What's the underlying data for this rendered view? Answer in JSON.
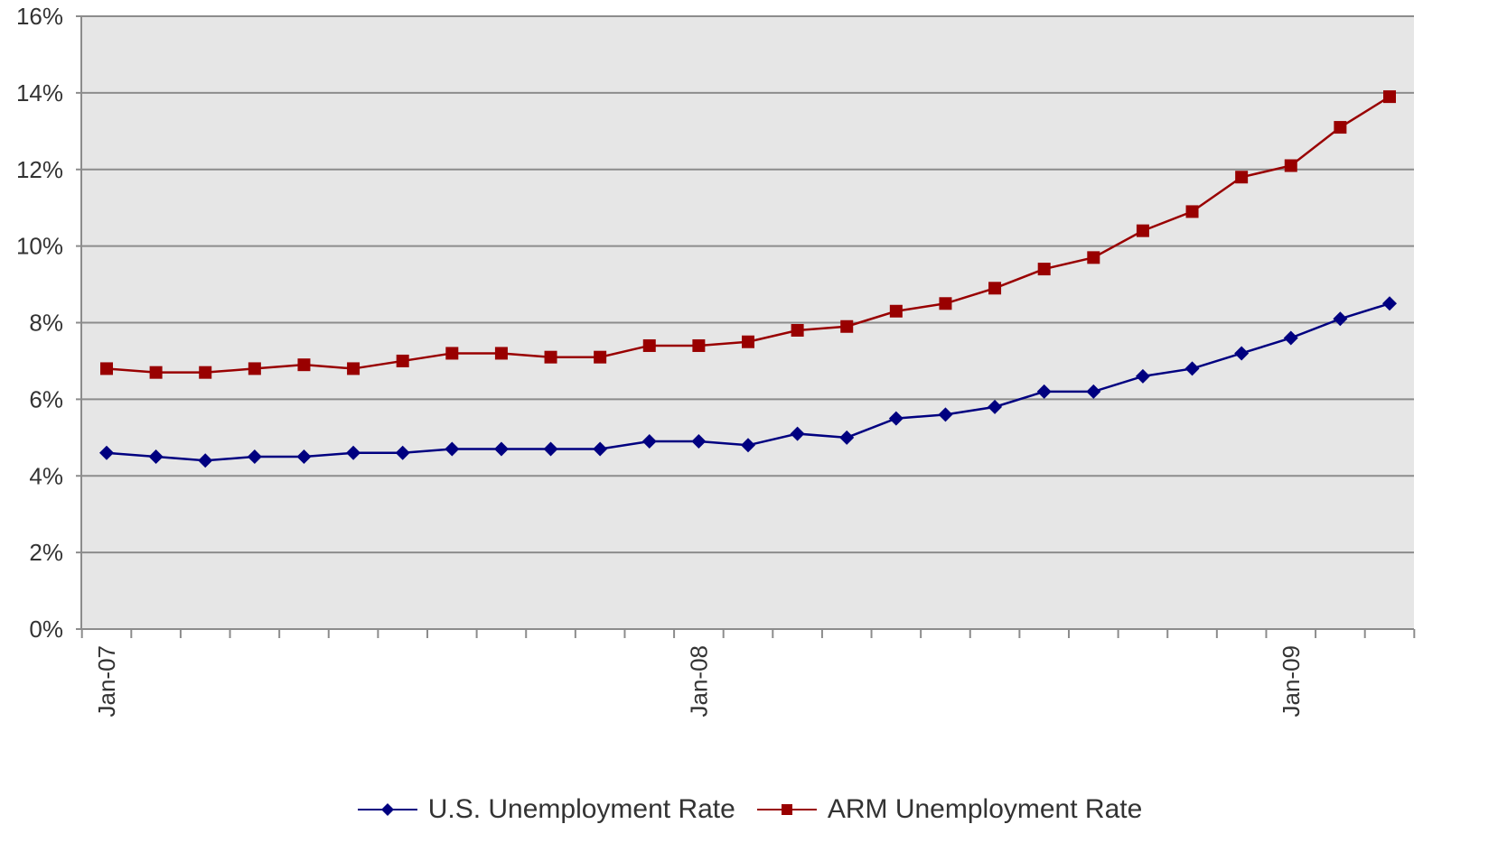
{
  "chart_data": {
    "type": "line",
    "title": "",
    "xlabel": "",
    "ylabel": "",
    "ylim": [
      0,
      16
    ],
    "y_ticks": [
      0,
      2,
      4,
      6,
      8,
      10,
      12,
      14,
      16
    ],
    "y_tick_labels": [
      "0%",
      "2%",
      "4%",
      "6%",
      "8%",
      "10%",
      "12%",
      "14%",
      "16%"
    ],
    "x": [
      "2007-01",
      "2007-02",
      "2007-03",
      "2007-04",
      "2007-05",
      "2007-06",
      "2007-07",
      "2007-08",
      "2007-09",
      "2007-10",
      "2007-11",
      "2007-12",
      "2008-01",
      "2008-02",
      "2008-03",
      "2008-04",
      "2008-05",
      "2008-06",
      "2008-07",
      "2008-08",
      "2008-09",
      "2008-10",
      "2008-11",
      "2008-12",
      "2009-01",
      "2009-02",
      "2009-03"
    ],
    "x_tick_labels": [
      {
        "at": "2007-01",
        "label": "Jan-07"
      },
      {
        "at": "2008-01",
        "label": "Jan-08"
      },
      {
        "at": "2009-01",
        "label": "Jan-09"
      }
    ],
    "grid": true,
    "plot_background": "#e6e6e6",
    "legend_position": "bottom",
    "series": [
      {
        "name": "U.S. Unemployment Rate",
        "color": "#000080",
        "marker": "diamond",
        "values": [
          4.6,
          4.5,
          4.4,
          4.5,
          4.5,
          4.6,
          4.6,
          4.7,
          4.7,
          4.7,
          4.7,
          4.9,
          4.9,
          4.8,
          5.1,
          5.0,
          5.5,
          5.6,
          5.8,
          6.2,
          6.2,
          6.6,
          6.8,
          7.2,
          7.6,
          8.1,
          8.5
        ]
      },
      {
        "name": "ARM Unemployment Rate",
        "color": "#990000",
        "marker": "square",
        "values": [
          6.8,
          6.7,
          6.7,
          6.8,
          6.9,
          6.8,
          7.0,
          7.2,
          7.2,
          7.1,
          7.1,
          7.4,
          7.4,
          7.5,
          7.8,
          7.9,
          8.3,
          8.5,
          8.9,
          9.4,
          9.7,
          10.4,
          10.9,
          11.8,
          12.1,
          13.1,
          13.9
        ]
      }
    ]
  }
}
